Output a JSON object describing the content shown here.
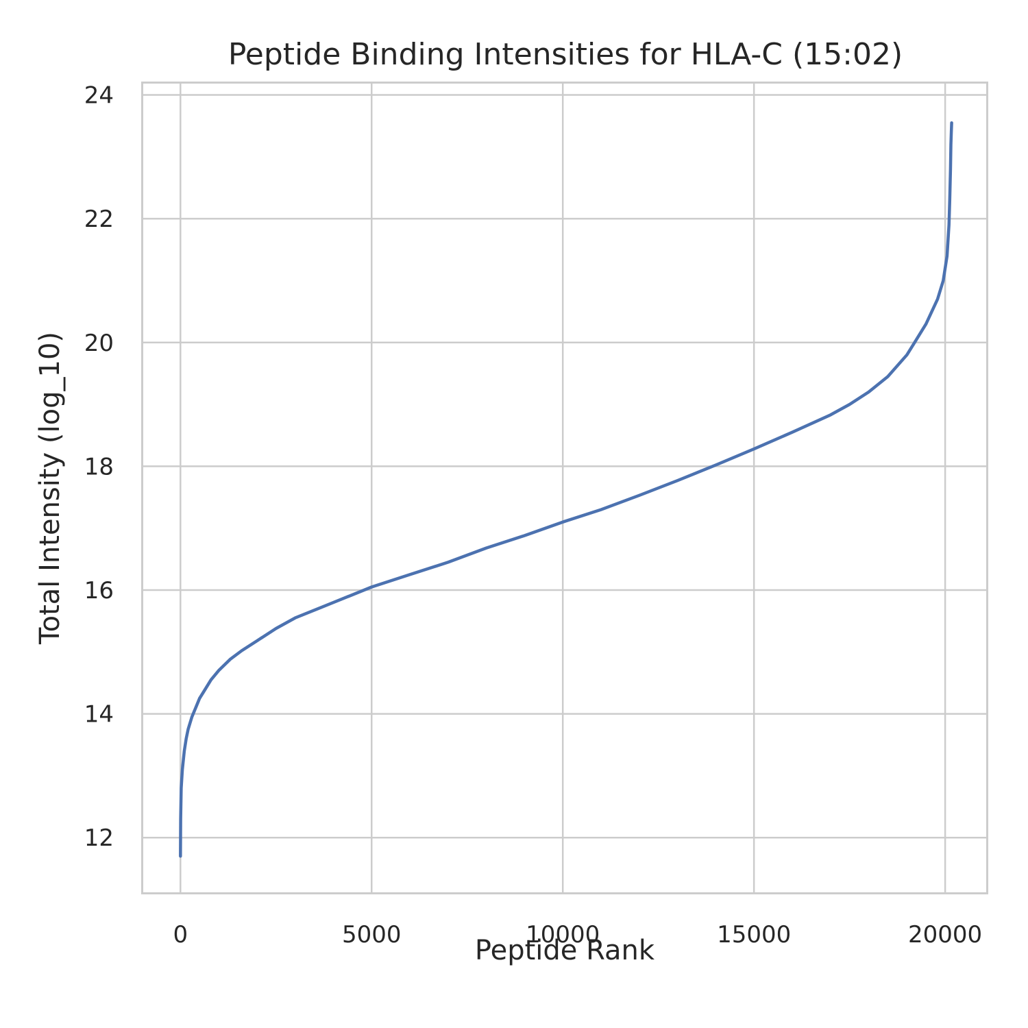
{
  "chart_data": {
    "type": "line",
    "title": "Peptide Binding Intensities for HLA-C (15:02)",
    "xlabel": "Peptide Rank",
    "ylabel": "Total Intensity (log_10)",
    "xlim": [
      -1000,
      21100
    ],
    "ylim": [
      11.1,
      24.2
    ],
    "xticks": [
      0,
      5000,
      10000,
      15000,
      20000
    ],
    "xtick_labels": [
      "0",
      "5000",
      "10000",
      "15000",
      "20000"
    ],
    "yticks": [
      12,
      14,
      16,
      18,
      20,
      22,
      24
    ],
    "ytick_labels": [
      "12",
      "14",
      "16",
      "18",
      "20",
      "22",
      "24"
    ],
    "grid": true,
    "series": [
      {
        "color": "#4c72b0",
        "x": [
          0,
          5,
          20,
          50,
          100,
          150,
          200,
          300,
          400,
          500,
          600,
          800,
          1000,
          1300,
          1600,
          2000,
          2500,
          3000,
          4000,
          5000,
          6000,
          7000,
          8000,
          9000,
          10000,
          11000,
          12000,
          13000,
          14000,
          15000,
          16000,
          17000,
          17500,
          18000,
          18500,
          19000,
          19200,
          19500,
          19800,
          19950,
          20050,
          20100,
          20120,
          20140,
          20150,
          20160,
          20170
        ],
        "y": [
          11.7,
          12.3,
          12.8,
          13.1,
          13.4,
          13.6,
          13.75,
          13.95,
          14.1,
          14.25,
          14.35,
          14.55,
          14.7,
          14.88,
          15.02,
          15.18,
          15.38,
          15.55,
          15.8,
          16.05,
          16.25,
          16.45,
          16.68,
          16.88,
          17.1,
          17.3,
          17.53,
          17.77,
          18.02,
          18.28,
          18.55,
          18.83,
          19.0,
          19.2,
          19.45,
          19.8,
          20.0,
          20.3,
          20.7,
          21.0,
          21.4,
          21.9,
          22.3,
          22.8,
          23.2,
          23.4,
          23.55
        ]
      }
    ]
  }
}
